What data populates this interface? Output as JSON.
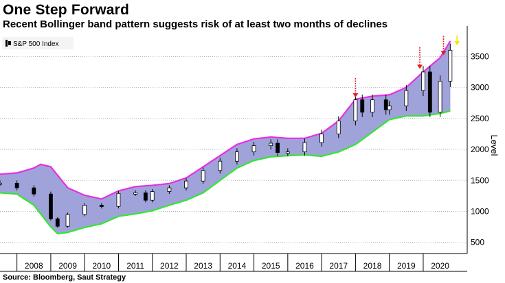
{
  "title": "One Step Forward",
  "subtitle": "Recent Bollinger band pattern suggests risk of at least two months of declines",
  "source": "Source: Bloomberg, Saut Strategy",
  "colors": {
    "band_fill": "#9fa3d9",
    "upper_band": "#e62ee6",
    "lower_band": "#33e633",
    "candle": "#000000",
    "candle_up": "#ffffff",
    "red_arrow": "#e02020",
    "yellow_arrow": "#f2e600",
    "grid": "#b0b0b0"
  },
  "chart_data": {
    "type": "line",
    "legend": [
      "S&P 500 Index"
    ],
    "legend_position": "top-left",
    "ylabel": "Level",
    "y_axis_side": "right",
    "ylim": [
      320,
      3880
    ],
    "y_ticks": [
      500,
      1000,
      1500,
      2000,
      2500,
      3000,
      3500
    ],
    "x_categories": [
      "2008",
      "2009",
      "2010",
      "2011",
      "2012",
      "2013",
      "2014",
      "2015",
      "2016",
      "2017",
      "2018",
      "2019",
      "2020"
    ],
    "grid": "horizontal dotted",
    "series": [
      {
        "name": "S&P 500 Index",
        "style": "monthly candlestick",
        "x": [
          2007.5,
          2008.0,
          2008.5,
          2009.0,
          2009.2,
          2009.5,
          2010.0,
          2010.5,
          2011.0,
          2011.5,
          2011.8,
          2012.0,
          2012.5,
          2013.0,
          2013.5,
          2014.0,
          2014.5,
          2015.0,
          2015.5,
          2015.7,
          2016.0,
          2016.5,
          2017.0,
          2017.5,
          2018.0,
          2018.2,
          2018.5,
          2018.9,
          2019.0,
          2019.5,
          2020.0,
          2020.2,
          2020.5,
          2020.8
        ],
        "values": [
          1455,
          1380,
          1280,
          880,
          760,
          950,
          1100,
          1080,
          1290,
          1300,
          1180,
          1320,
          1380,
          1490,
          1660,
          1810,
          1960,
          2060,
          2100,
          1950,
          1960,
          2110,
          2250,
          2460,
          2800,
          2600,
          2800,
          2640,
          2700,
          2950,
          3250,
          2600,
          3100,
          3600
        ]
      },
      {
        "name": "Upper Bollinger Band",
        "x": [
          2007.5,
          2008.0,
          2008.5,
          2008.7,
          2009.0,
          2009.5,
          2010.0,
          2010.5,
          2011.0,
          2011.5,
          2012.0,
          2012.5,
          2013.0,
          2013.5,
          2014.0,
          2014.5,
          2015.0,
          2015.5,
          2016.0,
          2016.5,
          2017.0,
          2017.5,
          2018.0,
          2018.5,
          2019.0,
          2019.5,
          2020.0,
          2020.5,
          2020.8
        ],
        "values": [
          1600,
          1620,
          1700,
          1760,
          1720,
          1380,
          1260,
          1200,
          1330,
          1400,
          1420,
          1450,
          1540,
          1720,
          1900,
          2080,
          2170,
          2200,
          2180,
          2180,
          2260,
          2460,
          2810,
          2860,
          2880,
          3000,
          3250,
          3480,
          3750
        ]
      },
      {
        "name": "Lower Bollinger Band",
        "x": [
          2007.5,
          2008.0,
          2008.5,
          2009.0,
          2009.2,
          2009.5,
          2010.0,
          2010.5,
          2011.0,
          2011.5,
          2012.0,
          2012.5,
          2013.0,
          2013.5,
          2014.0,
          2014.5,
          2015.0,
          2015.5,
          2016.0,
          2016.5,
          2017.0,
          2017.5,
          2018.0,
          2018.5,
          2019.0,
          2019.5,
          2020.0,
          2020.5,
          2020.8
        ],
        "values": [
          1300,
          1280,
          1100,
          750,
          640,
          660,
          740,
          800,
          920,
          960,
          1010,
          1100,
          1180,
          1300,
          1500,
          1700,
          1820,
          1880,
          1900,
          1910,
          1890,
          1960,
          2080,
          2280,
          2480,
          2540,
          2540,
          2580,
          2620
        ]
      }
    ],
    "annotations": [
      {
        "type": "arrow",
        "color": "red",
        "x": 2018.0,
        "y_from": 3150,
        "y_to": 2840
      },
      {
        "type": "arrow",
        "color": "red",
        "x": 2019.9,
        "y_from": 3650,
        "y_to": 3300
      },
      {
        "type": "arrow",
        "color": "red",
        "x": 2020.6,
        "y_from": 3830,
        "y_to": 3520
      },
      {
        "type": "arrow",
        "color": "yellow",
        "x": 2021.0,
        "y_from": 3840,
        "y_to": 3680
      }
    ]
  }
}
